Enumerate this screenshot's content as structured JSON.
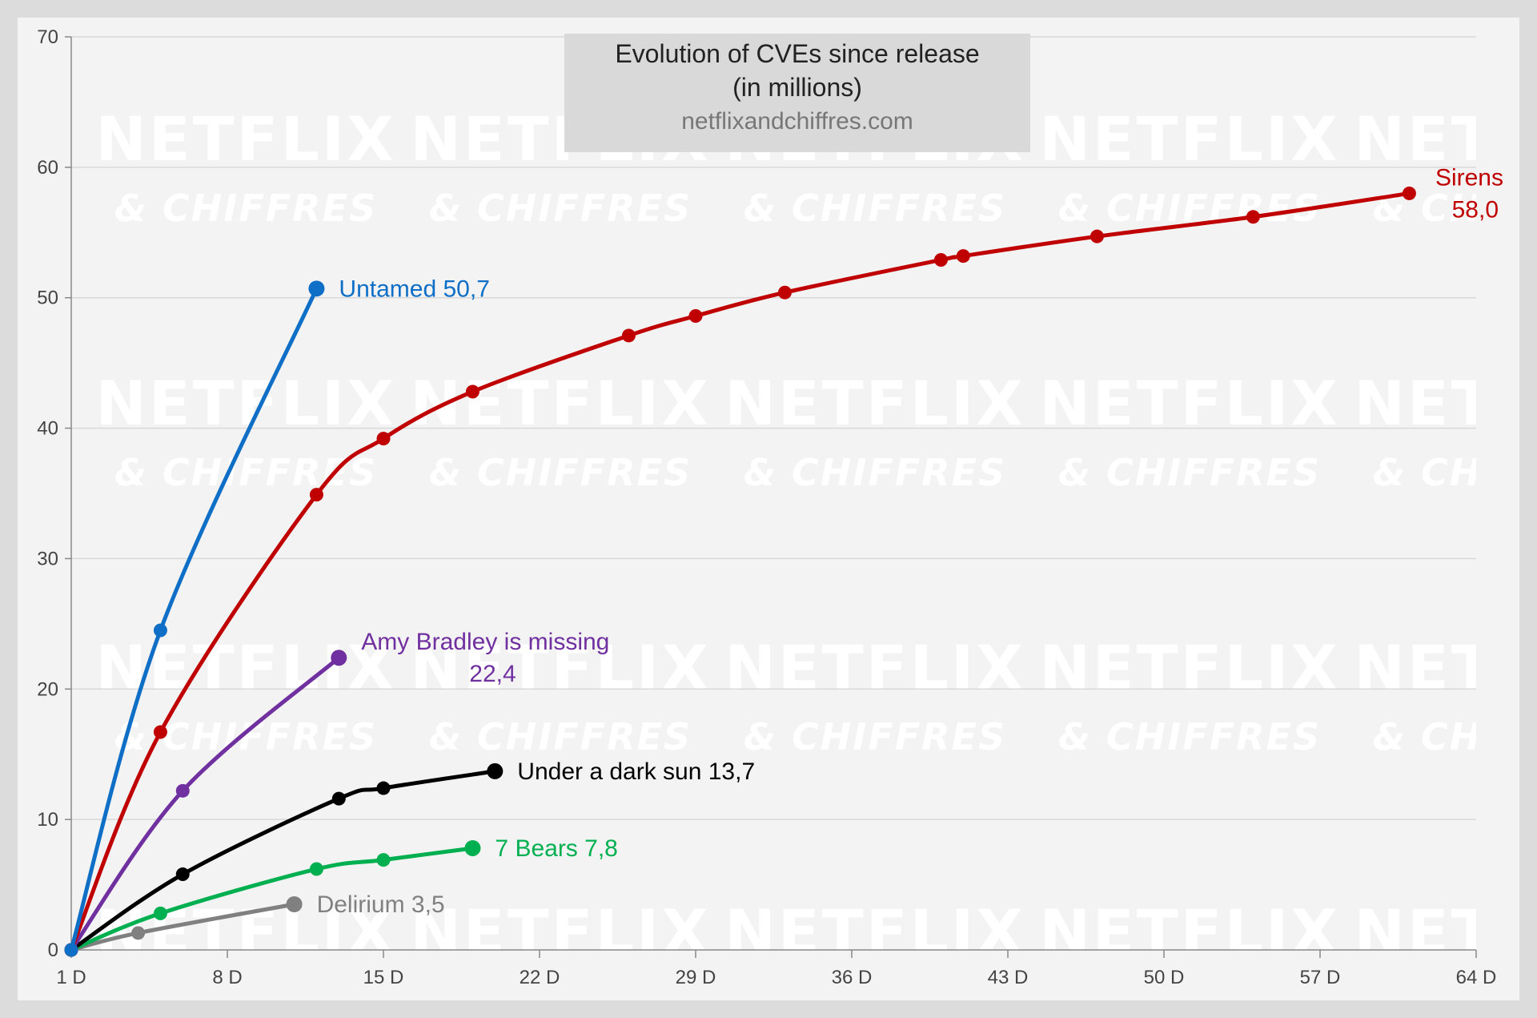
{
  "chart_data": {
    "type": "line",
    "title": "Evolution of CVEs since release",
    "subtitle": "(in millions)",
    "source": "netflixandchiffres.com",
    "watermark": {
      "line1": "NETFLIX",
      "line2": "& CHIFFRES"
    },
    "xlabel": "",
    "ylabel": "",
    "xlim": [
      1,
      64
    ],
    "ylim": [
      0,
      70
    ],
    "x_ticks": [
      1,
      8,
      15,
      22,
      29,
      36,
      43,
      50,
      57,
      64
    ],
    "x_tick_labels": [
      "1 D",
      "8 D",
      "15 D",
      "22 D",
      "29 D",
      "36 D",
      "43 D",
      "50 D",
      "57 D",
      "64 D"
    ],
    "y_ticks": [
      0,
      10,
      20,
      30,
      40,
      50,
      60,
      70
    ],
    "y_tick_labels": [
      "0",
      "10",
      "20",
      "30",
      "40",
      "50",
      "60",
      "70"
    ],
    "grid": true,
    "legend": "none",
    "series": [
      {
        "name": "Sirens",
        "label": [
          "Sirens",
          "58,0"
        ],
        "color": "#c00000",
        "x": [
          1,
          5,
          12,
          15,
          19,
          26,
          29,
          33,
          40,
          41,
          47,
          54,
          61
        ],
        "y": [
          0,
          16.7,
          34.9,
          39.2,
          42.8,
          47.1,
          48.6,
          50.4,
          52.9,
          53.2,
          54.7,
          56.2,
          58.0
        ]
      },
      {
        "name": "Untamed",
        "label": [
          "Untamed 50,7"
        ],
        "color": "#0f6fc6",
        "x": [
          1,
          5,
          12
        ],
        "y": [
          0,
          24.5,
          50.7
        ]
      },
      {
        "name": "Amy Bradley is missing",
        "label": [
          "Amy Bradley is missing",
          "22,4"
        ],
        "color": "#7030a0",
        "x": [
          1,
          6,
          13
        ],
        "y": [
          0,
          12.2,
          22.4
        ]
      },
      {
        "name": "Under a dark sun",
        "label": [
          "Under a dark sun 13,7"
        ],
        "color": "#000000",
        "x": [
          1,
          6,
          13,
          15,
          20
        ],
        "y": [
          0,
          5.8,
          11.6,
          12.4,
          13.7
        ]
      },
      {
        "name": "7 Bears",
        "label": [
          "7 Bears 7,8"
        ],
        "color": "#00b050",
        "x": [
          1,
          5,
          12,
          15,
          19
        ],
        "y": [
          0,
          2.8,
          6.2,
          6.9,
          7.8
        ]
      },
      {
        "name": "Delirium",
        "label": [
          "Delirium  3,5"
        ],
        "color": "#808080",
        "x": [
          1,
          4,
          11
        ],
        "y": [
          0,
          1.3,
          3.5
        ]
      }
    ]
  }
}
